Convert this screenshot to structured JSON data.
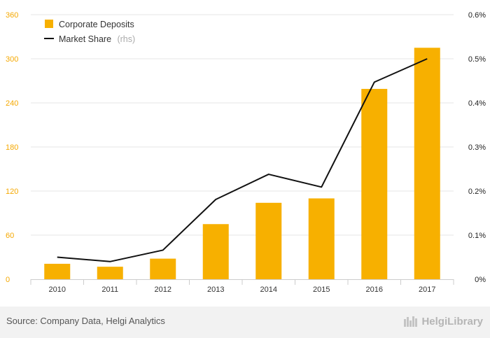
{
  "chart_data": {
    "type": "bar",
    "categories": [
      "2010",
      "2011",
      "2012",
      "2013",
      "2014",
      "2015",
      "2016",
      "2017"
    ],
    "series": [
      {
        "name": "Corporate Deposits",
        "type": "bar",
        "axis": "left",
        "color": "#f7b000",
        "values": [
          21,
          17,
          28,
          75,
          104,
          110,
          259,
          315
        ]
      },
      {
        "name": "Market Share",
        "type": "line",
        "axis": "right",
        "color": "#111111",
        "values": [
          0.0005,
          0.0004,
          0.00066,
          0.00181,
          0.00238,
          0.00209,
          0.00447,
          0.005
        ]
      }
    ],
    "left_axis": {
      "min": 0,
      "max": 360,
      "ticks": [
        "0",
        "60",
        "120",
        "180",
        "240",
        "300",
        "360"
      ]
    },
    "right_axis": {
      "min": 0,
      "max": 0.006,
      "ticks": [
        "0%",
        "0.1%",
        "0.2%",
        "0.3%",
        "0.4%",
        "0.5%",
        "0.6%"
      ]
    },
    "legend": {
      "placement": "top-left",
      "items": [
        {
          "label": "Corporate Deposits",
          "note": ""
        },
        {
          "label": "Market Share",
          "note": "(rhs)"
        }
      ]
    },
    "grid": true
  },
  "footer": {
    "source": "Source: Company Data, Helgi Analytics",
    "brand": "HelgiLibrary"
  }
}
